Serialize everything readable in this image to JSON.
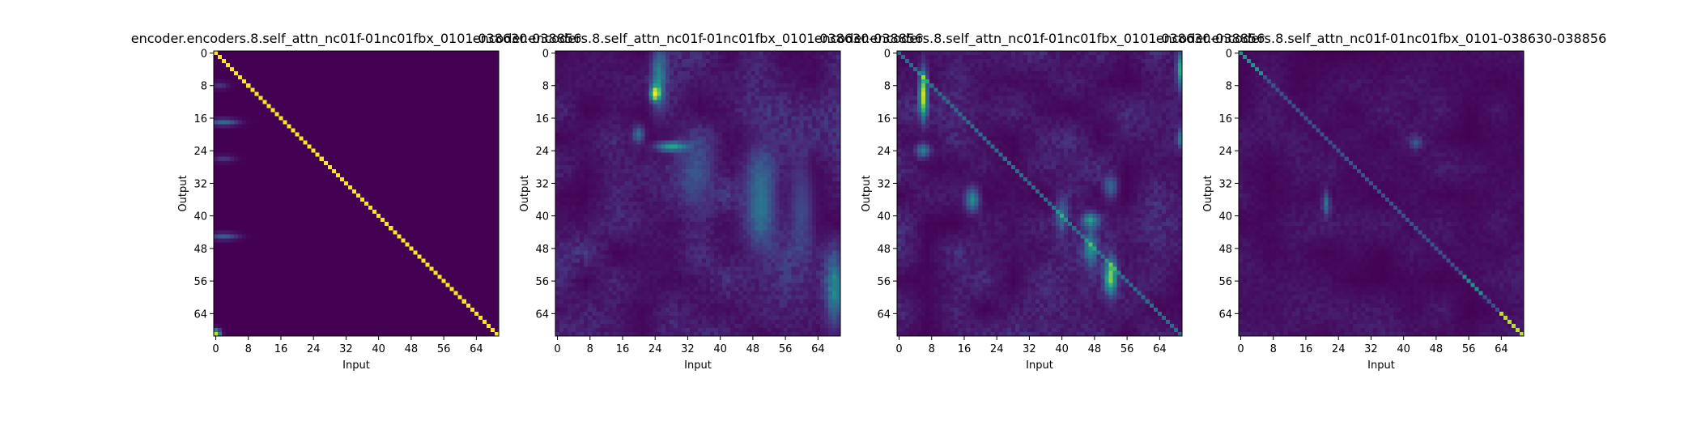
{
  "chart_data": [
    {
      "type": "heatmap",
      "title": "encoder.encoders.8.self_attn_nc01f-01nc01fbx_0101-038630-038856",
      "xlabel": "Input",
      "ylabel": "Output",
      "xticks": [
        0,
        8,
        16,
        24,
        32,
        40,
        48,
        56,
        64
      ],
      "yticks": [
        0,
        8,
        16,
        24,
        32,
        40,
        48,
        56,
        64
      ],
      "size": 70,
      "colormap": "viridis",
      "pattern": "sharp diagonal",
      "features": [
        {
          "kind": "diagonal",
          "offset": 0,
          "strength": 1.0,
          "width": 0.35
        },
        {
          "kind": "blob",
          "row": 17,
          "col": 2,
          "rr": 0.6,
          "rc": 2.5,
          "strength": 0.35
        },
        {
          "kind": "blob",
          "row": 45,
          "col": 2,
          "rr": 0.6,
          "rc": 2.5,
          "strength": 0.3
        },
        {
          "kind": "blob",
          "row": 69,
          "col": 0,
          "rr": 0.8,
          "rc": 0.8,
          "strength": 0.9
        },
        {
          "kind": "blob",
          "row": 8,
          "col": 1,
          "rr": 0.6,
          "rc": 1.5,
          "strength": 0.15
        },
        {
          "kind": "blob",
          "row": 26,
          "col": 2,
          "rr": 0.6,
          "rc": 2.0,
          "strength": 0.15
        }
      ]
    },
    {
      "type": "heatmap",
      "title": "encoder.encoders.8.self_attn_nc01f-01nc01fbx_0101-038630-038856",
      "xlabel": "Input",
      "ylabel": "Output",
      "xticks": [
        0,
        8,
        16,
        24,
        32,
        40,
        48,
        56,
        64
      ],
      "yticks": [
        0,
        8,
        16,
        24,
        32,
        40,
        48,
        56,
        64
      ],
      "size": 70,
      "colormap": "viridis",
      "pattern": "diffuse",
      "features": [
        {
          "kind": "noise",
          "seed": 11,
          "strength": 0.22
        },
        {
          "kind": "blob",
          "row": 10,
          "col": 24,
          "rr": 1.2,
          "rc": 0.8,
          "strength": 0.85
        },
        {
          "kind": "blob",
          "row": 6,
          "col": 25,
          "rr": 5,
          "rc": 1.2,
          "strength": 0.4
        },
        {
          "kind": "blob",
          "row": 23,
          "col": 28,
          "rr": 0.8,
          "rc": 2.5,
          "strength": 0.55
        },
        {
          "kind": "blob",
          "row": 20,
          "col": 20,
          "rr": 1.5,
          "rc": 1.0,
          "strength": 0.35
        },
        {
          "kind": "blob",
          "row": 36,
          "col": 50,
          "rr": 8,
          "rc": 2.5,
          "strength": 0.35
        },
        {
          "kind": "blob",
          "row": 58,
          "col": 68,
          "rr": 6,
          "rc": 1.5,
          "strength": 0.35
        },
        {
          "kind": "blob",
          "row": 38,
          "col": 60,
          "rr": 8,
          "rc": 2.0,
          "strength": 0.2
        },
        {
          "kind": "blob",
          "row": 30,
          "col": 34,
          "rr": 6,
          "rc": 3,
          "strength": 0.2
        }
      ]
    },
    {
      "type": "heatmap",
      "title": "encoder.encoders.8.self_attn_nc01f-01nc01fbx_0101-038630-038856",
      "xlabel": "Input",
      "ylabel": "Output",
      "xticks": [
        0,
        8,
        16,
        24,
        32,
        40,
        48,
        56,
        64
      ],
      "yticks": [
        0,
        8,
        16,
        24,
        32,
        40,
        48,
        56,
        64
      ],
      "size": 70,
      "colormap": "viridis",
      "pattern": "columns with faint diagonal",
      "features": [
        {
          "kind": "noise",
          "seed": 23,
          "strength": 0.2
        },
        {
          "kind": "diagonal",
          "offset": 0,
          "strength": 0.35,
          "width": 0.4
        },
        {
          "kind": "blob",
          "row": 10,
          "col": 6,
          "rr": 4,
          "rc": 0.7,
          "strength": 0.85
        },
        {
          "kind": "blob",
          "row": 4,
          "col": 69,
          "rr": 3,
          "rc": 0.6,
          "strength": 0.55
        },
        {
          "kind": "blob",
          "row": 21,
          "col": 69,
          "rr": 1.5,
          "rc": 0.6,
          "strength": 0.35
        },
        {
          "kind": "blob",
          "row": 55,
          "col": 52,
          "rr": 3,
          "rc": 1.0,
          "strength": 0.7
        },
        {
          "kind": "blob",
          "row": 36,
          "col": 18,
          "rr": 2,
          "rc": 1.2,
          "strength": 0.45
        },
        {
          "kind": "blob",
          "row": 41,
          "col": 47,
          "rr": 1.2,
          "rc": 1.5,
          "strength": 0.45
        },
        {
          "kind": "blob",
          "row": 48,
          "col": 47,
          "rr": 3,
          "rc": 1.0,
          "strength": 0.4
        },
        {
          "kind": "blob",
          "row": 24,
          "col": 6,
          "rr": 1.2,
          "rc": 1.2,
          "strength": 0.4
        },
        {
          "kind": "blob",
          "row": 40,
          "col": 40,
          "rr": 3,
          "rc": 1.0,
          "strength": 0.3
        },
        {
          "kind": "blob",
          "row": 33,
          "col": 52,
          "rr": 2,
          "rc": 1.2,
          "strength": 0.3
        }
      ]
    },
    {
      "type": "heatmap",
      "title": "encoder.encoders.8.self_attn_nc01f-01nc01fbx_0101-038630-038856",
      "xlabel": "Input",
      "ylabel": "Output",
      "xticks": [
        0,
        8,
        16,
        24,
        32,
        40,
        48,
        56,
        64
      ],
      "yticks": [
        0,
        8,
        16,
        24,
        32,
        40,
        48,
        56,
        64
      ],
      "size": 70,
      "colormap": "viridis",
      "pattern": "dark with partial diagonal",
      "features": [
        {
          "kind": "noise",
          "seed": 37,
          "strength": 0.12
        },
        {
          "kind": "diagonal",
          "offset": 0,
          "strength": 0.25,
          "width": 0.35,
          "from": 0,
          "to": 70
        },
        {
          "kind": "diagonal",
          "offset": 0,
          "strength": 0.5,
          "width": 0.35,
          "from": 0,
          "to": 6
        },
        {
          "kind": "diagonal",
          "offset": 0,
          "strength": 0.5,
          "width": 0.35,
          "from": 55,
          "to": 60
        },
        {
          "kind": "diagonal",
          "offset": 0,
          "strength": 0.9,
          "width": 0.35,
          "from": 64,
          "to": 70
        },
        {
          "kind": "blob",
          "row": 37,
          "col": 21,
          "rr": 2,
          "rc": 0.6,
          "strength": 0.35
        },
        {
          "kind": "blob",
          "row": 22,
          "col": 43,
          "rr": 1,
          "rc": 1,
          "strength": 0.2
        }
      ]
    }
  ]
}
